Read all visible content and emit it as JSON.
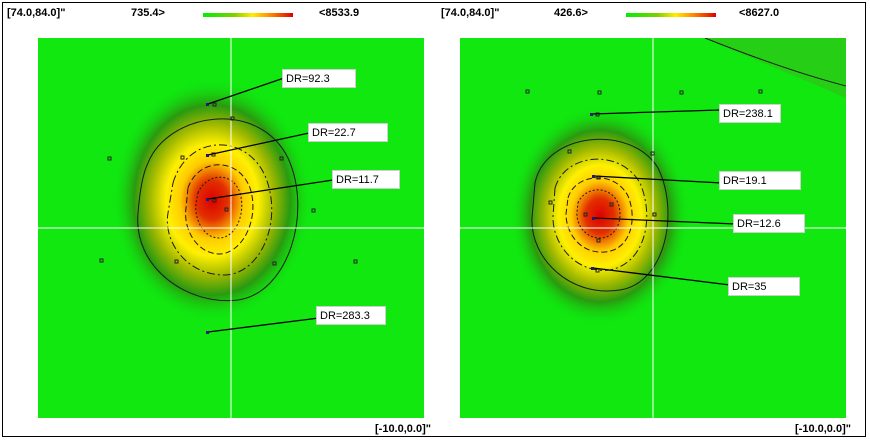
{
  "panels": [
    {
      "coord_top": "[74.0,84.0]\"",
      "scale_min": "735.4>",
      "scale_max": "<8533.9",
      "coord_bottom": "[-10.0,0.0]\"",
      "labels": [
        "DR=92.3",
        "DR=22.7",
        "DR=11.7",
        "DR=283.3"
      ]
    },
    {
      "coord_top": "[74.0,84.0]\"",
      "scale_min": "426.6>",
      "scale_max": "<8627.0",
      "coord_bottom": "[-10.0,0.0]\"",
      "labels": [
        "DR=238.1",
        "DR=19.1",
        "DR=12.6",
        "DR=35"
      ]
    }
  ],
  "colors": {
    "background_green": "#10e810",
    "hot_red": "#dd0000",
    "mid_yellow": "#ffee00",
    "crosshair": "#ffffff",
    "contour": "#1a1a1a"
  }
}
